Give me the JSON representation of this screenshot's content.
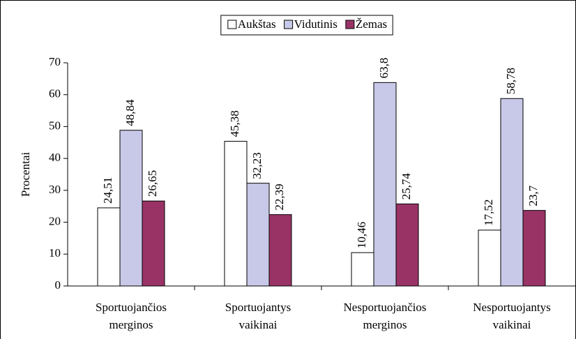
{
  "chart_data": {
    "type": "bar",
    "y_label": "Procentai",
    "categories": [
      [
        "Sportuojančios",
        "merginos"
      ],
      [
        "Sportuojantys",
        "vaikinai"
      ],
      [
        "Nesportuojančios",
        "merginos"
      ],
      [
        "Nesportuojantys",
        "vaikinai"
      ]
    ],
    "series": [
      {
        "name": "Aukštas",
        "color": "#ffffff",
        "values": [
          24.51,
          45.38,
          10.46,
          17.52
        ],
        "value_labels": [
          "24,51",
          "45,38",
          "10,46",
          "17,52"
        ]
      },
      {
        "name": "Vidutinis",
        "color": "#c8c8e8",
        "values": [
          48.84,
          32.23,
          63.8,
          58.78
        ],
        "value_labels": [
          "48,84",
          "32,23",
          "63,8",
          "58,78"
        ]
      },
      {
        "name": "Žemas",
        "color": "#993366",
        "values": [
          26.65,
          22.39,
          25.74,
          23.7
        ],
        "value_labels": [
          "26,65",
          "22,39",
          "25,74",
          "23,7"
        ]
      }
    ],
    "ylim": [
      0,
      70
    ],
    "yticks": [
      0,
      10,
      20,
      30,
      40,
      50,
      60,
      70
    ],
    "legend": "top"
  }
}
